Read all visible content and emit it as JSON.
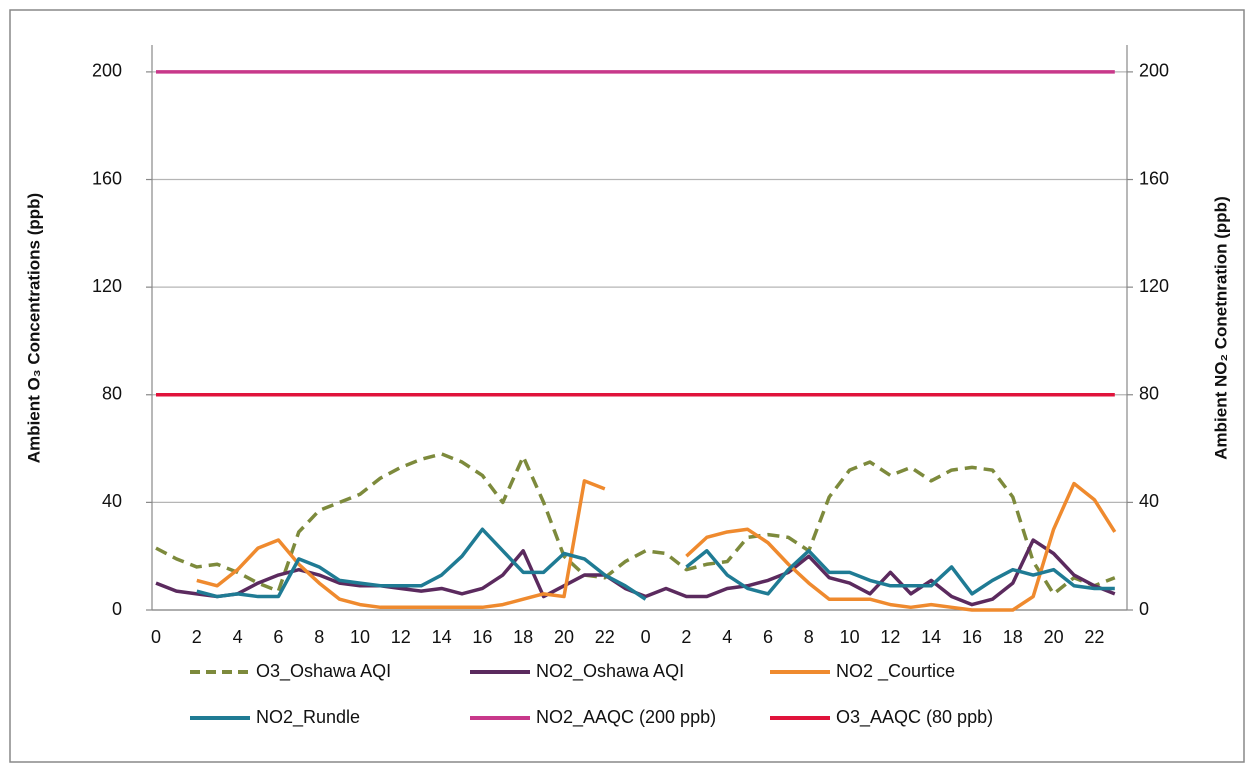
{
  "chart_data": {
    "type": "line",
    "ylabel": "Ambient O₃  Concentrations (ppb)",
    "y2label": "Ambient NO₂  Conetnration (ppb)",
    "categories": [
      "0",
      null,
      "2",
      null,
      "4",
      null,
      "6",
      null,
      "8",
      null,
      "10",
      null,
      "12",
      null,
      "14",
      null,
      "16",
      null,
      "18",
      null,
      "20",
      null,
      "22",
      null,
      "0",
      null,
      "2",
      null,
      "4",
      null,
      "6",
      null,
      "8",
      null,
      "10",
      null,
      "12",
      null,
      "14",
      null,
      "16",
      null,
      "18",
      null,
      "20",
      null,
      "22",
      null
    ],
    "ylim": [
      0,
      210
    ],
    "yticks": [
      0,
      40,
      80,
      120,
      160,
      200
    ],
    "y2lim": [
      0,
      210
    ],
    "y2ticks": [
      0,
      40,
      80,
      120,
      160,
      200
    ],
    "grid": true,
    "legend": "bottom",
    "series": [
      {
        "name": "O3_Oshawa AQI",
        "color": "#7d8a3c",
        "dashed": true,
        "axis": "y",
        "values": [
          23,
          19,
          16,
          17,
          14,
          10,
          7,
          29,
          37,
          40,
          43,
          49,
          53,
          56,
          58,
          55,
          50,
          40,
          57,
          40,
          20,
          13,
          12,
          18,
          22,
          21,
          15,
          17,
          18,
          27,
          28,
          27,
          22,
          42,
          52,
          55,
          50,
          53,
          48,
          52,
          53,
          52,
          42,
          18,
          6,
          12,
          9,
          12
        ]
      },
      {
        "name": "NO2_Oshawa AQI",
        "color": "#5b2a5e",
        "axis": "y2",
        "values": [
          10,
          7,
          6,
          5,
          6,
          10,
          13,
          15,
          13,
          10,
          9,
          9,
          8,
          7,
          8,
          6,
          8,
          13,
          22,
          5,
          9,
          13,
          13,
          8,
          5,
          8,
          5,
          5,
          8,
          9,
          11,
          14,
          20,
          12,
          10,
          6,
          14,
          6,
          11,
          5,
          2,
          4,
          10,
          26,
          21,
          13,
          9,
          6
        ]
      },
      {
        "name": "NO2 _Courtice",
        "color": "#ef8a2e",
        "axis": "y2",
        "values": [
          null,
          null,
          11,
          9,
          15,
          23,
          26,
          17,
          10,
          4,
          2,
          1,
          1,
          1,
          1,
          1,
          1,
          2,
          4,
          6,
          5,
          48,
          45,
          null,
          null,
          null,
          20,
          27,
          29,
          30,
          25,
          17,
          10,
          4,
          4,
          4,
          2,
          1,
          2,
          1,
          0,
          0,
          0,
          5,
          30,
          47,
          41,
          29
        ]
      },
      {
        "name": "NO2_Rundle",
        "color": "#1f7b94",
        "axis": "y2",
        "values": [
          null,
          null,
          7,
          5,
          6,
          5,
          5,
          19,
          16,
          11,
          10,
          9,
          9,
          9,
          13,
          20,
          30,
          22,
          14,
          14,
          21,
          19,
          13,
          9,
          4,
          null,
          16,
          22,
          13,
          8,
          6,
          15,
          22,
          14,
          14,
          11,
          9,
          9,
          9,
          16,
          6,
          11,
          15,
          13,
          15,
          9,
          8,
          8
        ]
      },
      {
        "name": "NO2_AAQC (200 ppb)",
        "color": "#c8388a",
        "axis": "y2",
        "values": [
          200,
          200,
          200,
          200,
          200,
          200,
          200,
          200,
          200,
          200,
          200,
          200,
          200,
          200,
          200,
          200,
          200,
          200,
          200,
          200,
          200,
          200,
          200,
          200,
          200,
          200,
          200,
          200,
          200,
          200,
          200,
          200,
          200,
          200,
          200,
          200,
          200,
          200,
          200,
          200,
          200,
          200,
          200,
          200,
          200,
          200,
          200,
          200
        ]
      },
      {
        "name": "O3_AAQC (80 ppb)",
        "color": "#e0133b",
        "axis": "y",
        "values": [
          80,
          80,
          80,
          80,
          80,
          80,
          80,
          80,
          80,
          80,
          80,
          80,
          80,
          80,
          80,
          80,
          80,
          80,
          80,
          80,
          80,
          80,
          80,
          80,
          80,
          80,
          80,
          80,
          80,
          80,
          80,
          80,
          80,
          80,
          80,
          80,
          80,
          80,
          80,
          80,
          80,
          80,
          80,
          80,
          80,
          80,
          80,
          80
        ]
      }
    ]
  }
}
